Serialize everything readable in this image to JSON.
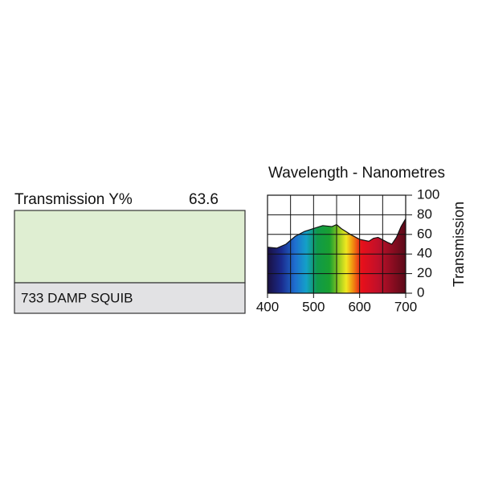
{
  "swatch": {
    "label": "Transmission Y%",
    "value": "63.6",
    "name": "733 DAMP SQUIB",
    "color": "#dfeed2"
  },
  "chart_data": {
    "type": "area",
    "title": "Wavelength - Nanometres",
    "y_label": "Transmission",
    "x": [
      400,
      420,
      440,
      460,
      480,
      500,
      520,
      540,
      550,
      560,
      580,
      600,
      620,
      630,
      640,
      660,
      670,
      680,
      690,
      700
    ],
    "values": [
      47,
      46,
      50,
      58,
      63,
      66,
      69,
      68,
      70,
      66,
      60,
      55,
      53,
      56,
      57,
      52,
      50,
      57,
      68,
      76
    ],
    "xlim": [
      400,
      700
    ],
    "ylim": [
      0,
      100
    ],
    "xticks": [
      400,
      500,
      600,
      700
    ],
    "yticks": [
      0,
      20,
      40,
      60,
      80,
      100
    ],
    "xgrid": [
      400,
      450,
      500,
      550,
      600,
      650,
      700
    ],
    "grid": true
  }
}
